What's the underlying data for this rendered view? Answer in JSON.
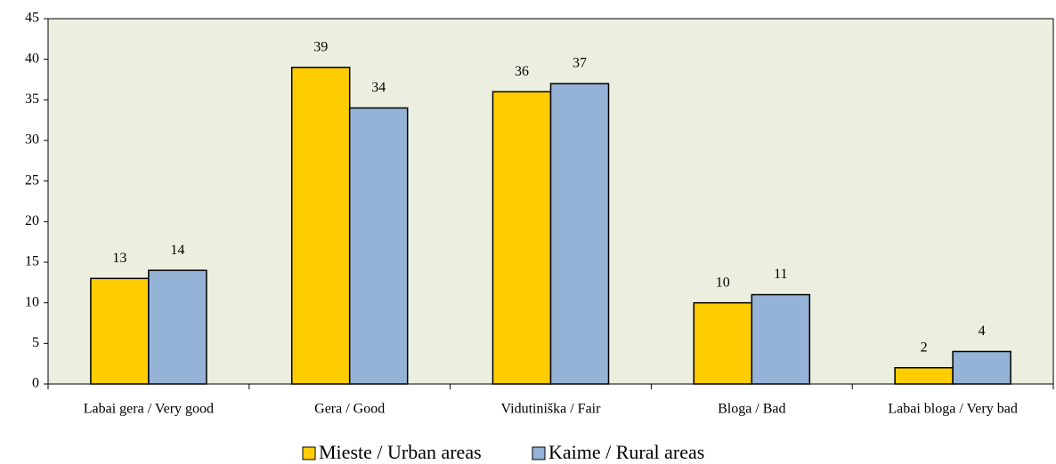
{
  "chart_data": {
    "type": "bar",
    "categories": [
      "Labai gera / Very good",
      "Gera / Good",
      "Vidutiniška / Fair",
      "Bloga / Bad",
      "Labai bloga / Very bad"
    ],
    "series": [
      {
        "name": "Mieste / Urban areas",
        "color": "#ffcc00",
        "values": [
          13,
          39,
          36,
          10,
          2
        ]
      },
      {
        "name": "Kaime / Rural areas",
        "color": "#95b3d7",
        "values": [
          14,
          34,
          37,
          11,
          4
        ]
      }
    ],
    "ylim": [
      0,
      45
    ],
    "yticks": [
      0,
      5,
      10,
      15,
      20,
      25,
      30,
      35,
      40,
      45
    ],
    "plot_background": "#ecefdf",
    "legend": "bottom"
  }
}
